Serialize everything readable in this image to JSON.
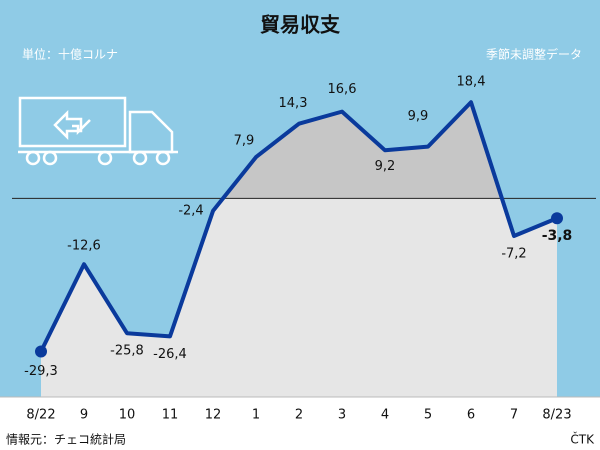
{
  "chart_data": {
    "type": "line",
    "title": "貿易収支",
    "subtitle": "単位：十億コルナ",
    "note": "季節未調整データ",
    "source": "情報元：チェコ統計局",
    "credit": "ČTK",
    "categories": [
      "8/22",
      "9",
      "10",
      "11",
      "12",
      "1",
      "2",
      "3",
      "4",
      "5",
      "6",
      "7",
      "8/23"
    ],
    "series": [
      {
        "color": "#0a3a9c",
        "values": [
          -29.3,
          -12.6,
          -25.8,
          -26.4,
          -2.4,
          7.9,
          14.3,
          16.6,
          9.2,
          9.9,
          18.4,
          -7.2,
          -3.8
        ],
        "value_labels": [
          "-29,3",
          "-12,6",
          "-25,8",
          "-26,4",
          "-2,4",
          "7,9",
          "14,3",
          "16,6",
          "9,2",
          "9,9",
          "18,4",
          "-7,2",
          "-3,8"
        ]
      }
    ],
    "ylim": [
      -38,
      37
    ]
  }
}
